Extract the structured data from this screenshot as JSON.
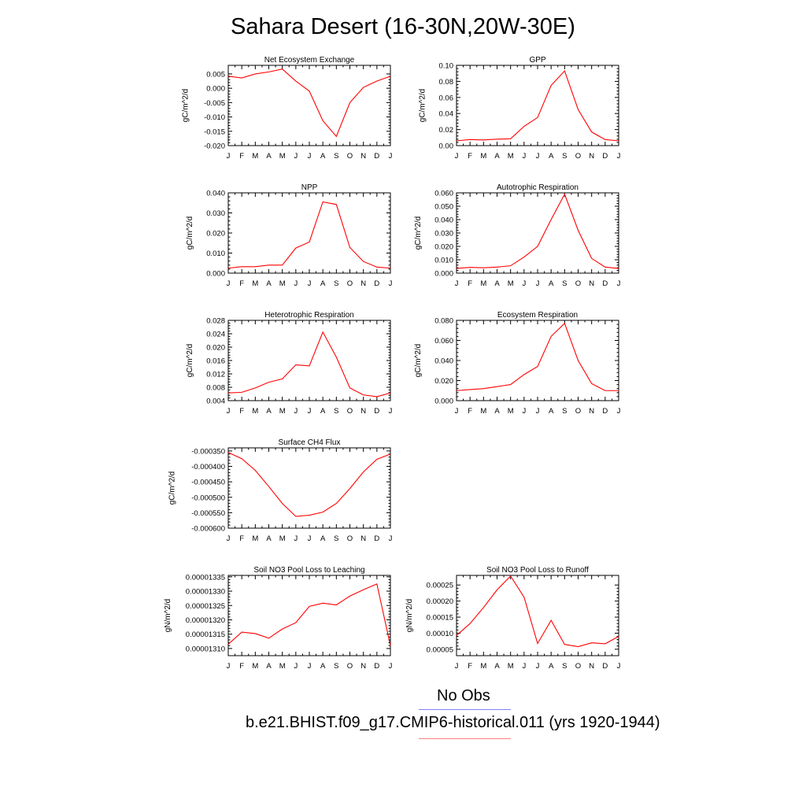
{
  "title": "Sahara Desert (16-30N,20W-30E)",
  "legend": [
    {
      "label": "No Obs",
      "color": "#8080ff"
    },
    {
      "label": "b.e21.BHIST.f09_g17.CMIP6-historical.011 (yrs 1920-1944)",
      "color": "#ff8080"
    }
  ],
  "line_color": "#ff0000",
  "chart_data": [
    {
      "type": "line",
      "title": "Net Ecosystem Exchange",
      "ylabel": "gC/m^2/d",
      "categories": [
        "J",
        "F",
        "M",
        "A",
        "M",
        "J",
        "J",
        "A",
        "S",
        "O",
        "N",
        "D",
        "J"
      ],
      "ylim": [
        -0.02,
        0.008
      ],
      "yticks": [
        -0.02,
        -0.015,
        -0.01,
        -0.005,
        0.0,
        0.005
      ],
      "ytick_labels": [
        "-0.020",
        "-0.015",
        "-0.010",
        "-0.005",
        "0.000",
        "0.005"
      ],
      "values": [
        0.0042,
        0.0036,
        0.005,
        0.0057,
        0.0067,
        0.0025,
        -0.001,
        -0.0113,
        -0.0168,
        -0.005,
        0.0003,
        0.0025,
        0.0042
      ]
    },
    {
      "type": "line",
      "title": "GPP",
      "ylabel": "gC/m^2/d",
      "categories": [
        "J",
        "F",
        "M",
        "A",
        "M",
        "J",
        "J",
        "A",
        "S",
        "O",
        "N",
        "D",
        "J"
      ],
      "ylim": [
        0.0,
        0.1
      ],
      "yticks": [
        0.0,
        0.02,
        0.04,
        0.06,
        0.08,
        0.1
      ],
      "ytick_labels": [
        "0.00",
        "0.02",
        "0.04",
        "0.06",
        "0.08",
        "0.10"
      ],
      "values": [
        0.006,
        0.0075,
        0.007,
        0.008,
        0.0085,
        0.024,
        0.035,
        0.075,
        0.093,
        0.045,
        0.017,
        0.0075,
        0.006
      ]
    },
    {
      "type": "line",
      "title": "NPP",
      "ylabel": "gC/m^2/d",
      "categories": [
        "J",
        "F",
        "M",
        "A",
        "M",
        "J",
        "J",
        "A",
        "S",
        "O",
        "N",
        "D",
        "J"
      ],
      "ylim": [
        0.0,
        0.04
      ],
      "yticks": [
        0.0,
        0.01,
        0.02,
        0.03,
        0.04
      ],
      "ytick_labels": [
        "0.000",
        "0.010",
        "0.020",
        "0.030",
        "0.040"
      ],
      "values": [
        0.0025,
        0.0032,
        0.0032,
        0.004,
        0.004,
        0.0125,
        0.0155,
        0.0355,
        0.0342,
        0.0128,
        0.0058,
        0.003,
        0.0025
      ]
    },
    {
      "type": "line",
      "title": "Autotrophic Respiration",
      "ylabel": "gC/m^2/d",
      "categories": [
        "J",
        "F",
        "M",
        "A",
        "M",
        "J",
        "J",
        "A",
        "S",
        "O",
        "N",
        "D",
        "J"
      ],
      "ylim": [
        0.0,
        0.06
      ],
      "yticks": [
        0.0,
        0.01,
        0.02,
        0.03,
        0.04,
        0.05,
        0.06
      ],
      "ytick_labels": [
        "0.000",
        "0.010",
        "0.020",
        "0.030",
        "0.040",
        "0.050",
        "0.060"
      ],
      "values": [
        0.0035,
        0.0043,
        0.004,
        0.0045,
        0.0055,
        0.012,
        0.02,
        0.04,
        0.059,
        0.032,
        0.011,
        0.0045,
        0.0035
      ]
    },
    {
      "type": "line",
      "title": "Heterotrophic Respiration",
      "ylabel": "gC/m^2/d",
      "categories": [
        "J",
        "F",
        "M",
        "A",
        "M",
        "J",
        "J",
        "A",
        "S",
        "O",
        "N",
        "D",
        "J"
      ],
      "ylim": [
        0.004,
        0.028
      ],
      "yticks": [
        0.004,
        0.008,
        0.012,
        0.016,
        0.02,
        0.024,
        0.028
      ],
      "ytick_labels": [
        "0.004",
        "0.008",
        "0.012",
        "0.016",
        "0.020",
        "0.024",
        "0.028"
      ],
      "values": [
        0.0063,
        0.0065,
        0.0078,
        0.0095,
        0.0105,
        0.0147,
        0.0144,
        0.0245,
        0.017,
        0.0078,
        0.0057,
        0.0052,
        0.0063
      ]
    },
    {
      "type": "line",
      "title": "Ecosystem Respiration",
      "ylabel": "gC/m^2/d",
      "categories": [
        "J",
        "F",
        "M",
        "A",
        "M",
        "J",
        "J",
        "A",
        "S",
        "O",
        "N",
        "D",
        "J"
      ],
      "ylim": [
        0.0,
        0.08
      ],
      "yticks": [
        0.0,
        0.02,
        0.04,
        0.06,
        0.08
      ],
      "ytick_labels": [
        "0.000",
        "0.020",
        "0.040",
        "0.060",
        "0.080"
      ],
      "values": [
        0.01,
        0.011,
        0.012,
        0.014,
        0.016,
        0.026,
        0.034,
        0.064,
        0.077,
        0.04,
        0.017,
        0.01,
        0.01
      ]
    },
    {
      "type": "line",
      "title": "Surface CH4 Flux",
      "ylabel": "gC/m^2/d",
      "categories": [
        "J",
        "F",
        "M",
        "A",
        "M",
        "J",
        "J",
        "A",
        "S",
        "O",
        "N",
        "D",
        "J"
      ],
      "ylim": [
        -0.0006,
        -0.00034
      ],
      "yticks": [
        -0.0006,
        -0.00055,
        -0.0005,
        -0.00045,
        -0.0004,
        -0.00035
      ],
      "ytick_labels": [
        "-0.000600",
        "-0.000550",
        "-0.000500",
        "-0.000450",
        "-0.000400",
        "-0.000350"
      ],
      "values": [
        -0.000355,
        -0.000375,
        -0.000413,
        -0.000465,
        -0.00052,
        -0.000562,
        -0.000558,
        -0.000548,
        -0.00052,
        -0.000472,
        -0.000418,
        -0.000377,
        -0.00036
      ]
    },
    {
      "type": "line",
      "title": "Soil NO3 Pool Loss to Leaching",
      "ylabel": "gN/m^2/d",
      "categories": [
        "J",
        "F",
        "M",
        "A",
        "M",
        "J",
        "J",
        "A",
        "S",
        "O",
        "N",
        "D",
        "J"
      ],
      "ylim": [
        1.3075e-05,
        1.3355e-05
      ],
      "yticks": [
        1.31e-05,
        1.315e-05,
        1.32e-05,
        1.325e-05,
        1.33e-05,
        1.335e-05
      ],
      "ytick_labels": [
        "0.00001310",
        "0.00001315",
        "0.00001320",
        "0.00001325",
        "0.00001330",
        "0.00001335"
      ],
      "values": [
        1.3115e-05,
        1.3157e-05,
        1.3152e-05,
        1.3136e-05,
        1.3168e-05,
        1.319e-05,
        1.3247e-05,
        1.3258e-05,
        1.3252e-05,
        1.3283e-05,
        1.3305e-05,
        1.3325e-05,
        1.311e-05
      ]
    },
    {
      "type": "line",
      "title": "Soil NO3 Pool Loss to Runoff",
      "ylabel": "gN/m^2/d",
      "categories": [
        "J",
        "F",
        "M",
        "A",
        "M",
        "J",
        "J",
        "A",
        "S",
        "O",
        "N",
        "D",
        "J"
      ],
      "ylim": [
        3e-05,
        0.00028
      ],
      "yticks": [
        5e-05,
        0.0001,
        0.00015,
        0.0002,
        0.00025
      ],
      "ytick_labels": [
        "0.00005",
        "0.00010",
        "0.00015",
        "0.00020",
        "0.00025"
      ],
      "values": [
        9.3e-05,
        0.00013,
        0.00018,
        0.000235,
        0.000278,
        0.000212,
        6.8e-05,
        0.00014,
        6.5e-05,
        5.8e-05,
        7e-05,
        6.7e-05,
        9e-05
      ]
    }
  ]
}
